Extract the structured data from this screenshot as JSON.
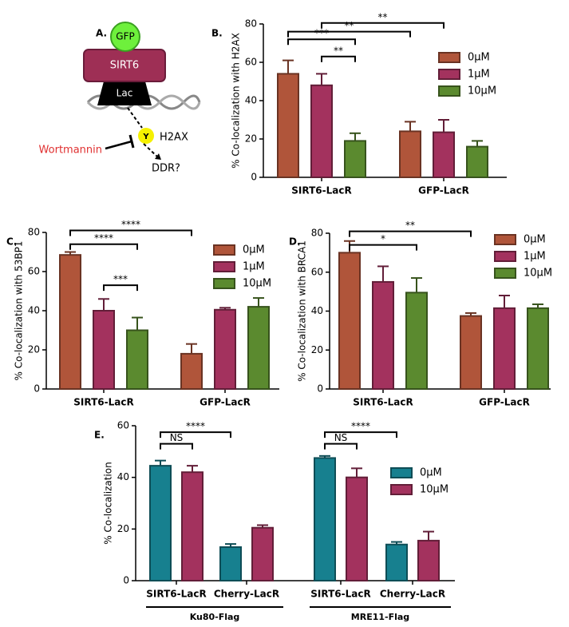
{
  "diagram": {
    "panel": "A.",
    "labels": [
      "GFP",
      "SIRT6",
      "Lac",
      "Y",
      "H2AX",
      "Wortmannin",
      "DDR?"
    ]
  },
  "chart_data": [
    {
      "type": "bar",
      "panel": "B.",
      "ylabel": "% Co-localization with  H2AX",
      "categories": [
        "SIRT6-LacR",
        "GFP-LacR"
      ],
      "series": [
        {
          "name": "0μM",
          "color": "#b0553a",
          "values": [
            54,
            24
          ],
          "errors": [
            7,
            5
          ]
        },
        {
          "name": "1μM",
          "color": "#a3325e",
          "values": [
            48,
            23.5
          ],
          "errors": [
            6,
            6.5
          ]
        },
        {
          "name": "10μM",
          "color": "#5b8a2f",
          "values": [
            19,
            16
          ],
          "errors": [
            4,
            3
          ]
        }
      ],
      "ylim": [
        0,
        80
      ],
      "yticks": [
        0,
        20,
        40,
        60,
        80
      ],
      "annotations": [
        "**",
        "**",
        "***",
        "**"
      ]
    },
    {
      "type": "bar",
      "panel": "C.",
      "ylabel": "% Co-localization with 53BP1",
      "categories": [
        "SIRT6-LacR",
        "GFP-LacR"
      ],
      "series": [
        {
          "name": "0μM",
          "color": "#b0553a",
          "values": [
            68.5,
            18
          ],
          "errors": [
            1.5,
            5
          ]
        },
        {
          "name": "1μM",
          "color": "#a3325e",
          "values": [
            40,
            40.5
          ],
          "errors": [
            6,
            1
          ]
        },
        {
          "name": "10μM",
          "color": "#5b8a2f",
          "values": [
            30,
            42
          ],
          "errors": [
            6.5,
            4.5
          ]
        }
      ],
      "ylim": [
        0,
        80
      ],
      "yticks": [
        0,
        20,
        40,
        60,
        80
      ],
      "annotations": [
        "****",
        "****",
        "***"
      ]
    },
    {
      "type": "bar",
      "panel": "D.",
      "ylabel": "% Co-localization with BRCA1",
      "categories": [
        "SIRT6-LacR",
        "GFP-LacR"
      ],
      "series": [
        {
          "name": "0μM",
          "color": "#b0553a",
          "values": [
            70,
            37.5
          ],
          "errors": [
            6,
            1.5
          ]
        },
        {
          "name": "1μM",
          "color": "#a3325e",
          "values": [
            55,
            41.5
          ],
          "errors": [
            8,
            6.5
          ]
        },
        {
          "name": "10μM",
          "color": "#5b8a2f",
          "values": [
            49.5,
            41.5
          ],
          "errors": [
            7.5,
            2
          ]
        }
      ],
      "ylim": [
        0,
        80
      ],
      "yticks": [
        0,
        20,
        40,
        60,
        80
      ],
      "annotations": [
        "**",
        "*"
      ]
    },
    {
      "type": "bar",
      "panel": "E.",
      "ylabel": "% Co-localization",
      "categories": [
        "SIRT6-LacR",
        "Cherry-LacR",
        "SIRT6-LacR",
        "Cherry-LacR"
      ],
      "groups": [
        "Ku80-Flag",
        "MRE11-Flag"
      ],
      "series": [
        {
          "name": "0μM",
          "color": "#17808f",
          "values": [
            44.5,
            13,
            47.5,
            14
          ],
          "errors": [
            2,
            1.2,
            0.8,
            1
          ]
        },
        {
          "name": "10μM",
          "color": "#a3325e",
          "values": [
            42,
            20.5,
            40,
            15.5
          ],
          "errors": [
            2.5,
            1,
            3.5,
            3.5
          ]
        }
      ],
      "ylim": [
        0,
        60
      ],
      "yticks": [
        0,
        20,
        40,
        60
      ],
      "annotations": [
        "NS",
        "****",
        "NS",
        "****"
      ]
    }
  ]
}
